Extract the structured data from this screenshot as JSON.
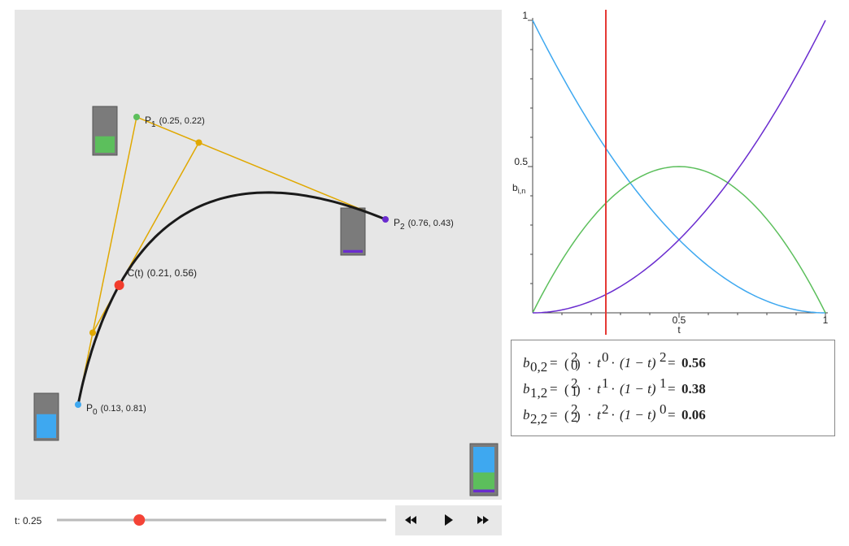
{
  "points": [
    {
      "name": "P",
      "sub": "0",
      "x": 0.13,
      "y": 0.81,
      "coords": "(0.13, 0.81)",
      "color": "#3ea8f0"
    },
    {
      "name": "P",
      "sub": "1",
      "x": 0.25,
      "y": 0.22,
      "coords": "(0.25, 0.22)",
      "color": "#5cbf5c"
    },
    {
      "name": "P",
      "sub": "2",
      "x": 0.76,
      "y": 0.43,
      "coords": "(0.76, 0.43)",
      "color": "#6a2ccf"
    }
  ],
  "curve_point": {
    "name": "C(t)",
    "coords": "(0.21, 0.56)",
    "color": "#f23c2c"
  },
  "control_color": "#e0a800",
  "slider": {
    "label": "t: 0.25",
    "t": 0.25
  },
  "graph": {
    "xticks": [
      0.5,
      1
    ],
    "yticks": [
      0.5,
      1
    ],
    "xlabel": "t",
    "ylabel": "b",
    "ylabel_sub": "i,n",
    "marker_color": "#e53935"
  },
  "formula": {
    "symbol": "b",
    "eq": "=",
    "dot": "·",
    "t": "t",
    "one_minus_t": "(1 − t)",
    "terms": [
      {
        "sub": "0,2",
        "n": "2",
        "k": "0",
        "t_exp": "0",
        "rest_exp": "2",
        "result": "0.56"
      },
      {
        "sub": "1,2",
        "n": "2",
        "k": "1",
        "t_exp": "1",
        "rest_exp": "1",
        "result": "0.38"
      },
      {
        "sub": "2,2",
        "n": "2",
        "k": "2",
        "t_exp": "2",
        "rest_exp": "0",
        "result": "0.06"
      }
    ]
  }
}
